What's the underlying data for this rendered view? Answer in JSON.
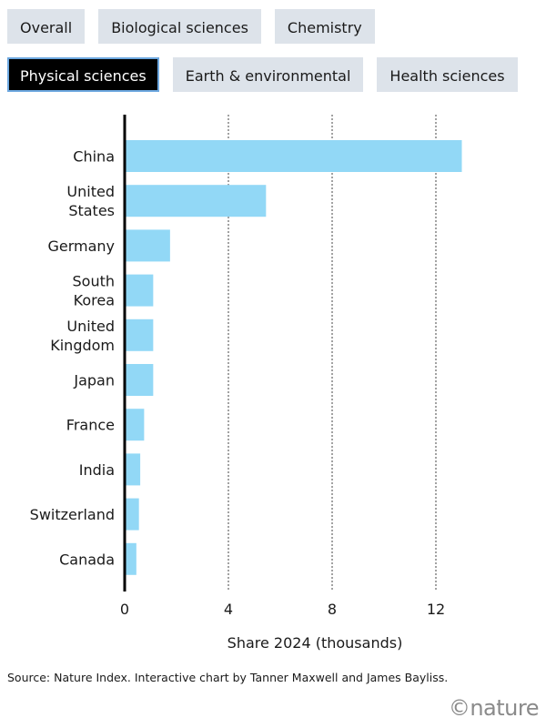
{
  "tabs": [
    {
      "label": "Overall",
      "active": false
    },
    {
      "label": "Biological sciences",
      "active": false
    },
    {
      "label": "Chemistry",
      "active": false
    },
    {
      "label": "Physical sciences",
      "active": true
    },
    {
      "label": "Earth & environmental",
      "active": false
    },
    {
      "label": "Health sciences",
      "active": false
    }
  ],
  "colors": {
    "bar": "#92d8f6",
    "tab_bg": "#dde3ea",
    "tab_active_bg": "#000000",
    "tab_active_border": "#6da8e0"
  },
  "chart_data": {
    "type": "bar",
    "orientation": "horizontal",
    "categories": [
      "China",
      "United States",
      "Germany",
      "South Korea",
      "United Kingdom",
      "Japan",
      "France",
      "India",
      "Switzerland",
      "Canada"
    ],
    "category_lines": [
      [
        "China"
      ],
      [
        "United",
        "States"
      ],
      [
        "Germany"
      ],
      [
        "South",
        "Korea"
      ],
      [
        "United",
        "Kingdom"
      ],
      [
        "Japan"
      ],
      [
        "France"
      ],
      [
        "India"
      ],
      [
        "Switzerland"
      ],
      [
        "Canada"
      ]
    ],
    "values": [
      13.0,
      5.45,
      1.75,
      1.1,
      1.1,
      1.1,
      0.75,
      0.6,
      0.55,
      0.45
    ],
    "xlim": [
      0,
      14
    ],
    "xticks": [
      0,
      4,
      8,
      12
    ],
    "xlabel": "Share 2024 (thousands)",
    "grid": "vertical dashed at ticks"
  },
  "source": "Source: Nature Index. Interactive chart by Tanner Maxwell and James Bayliss.",
  "logo": "©nature"
}
